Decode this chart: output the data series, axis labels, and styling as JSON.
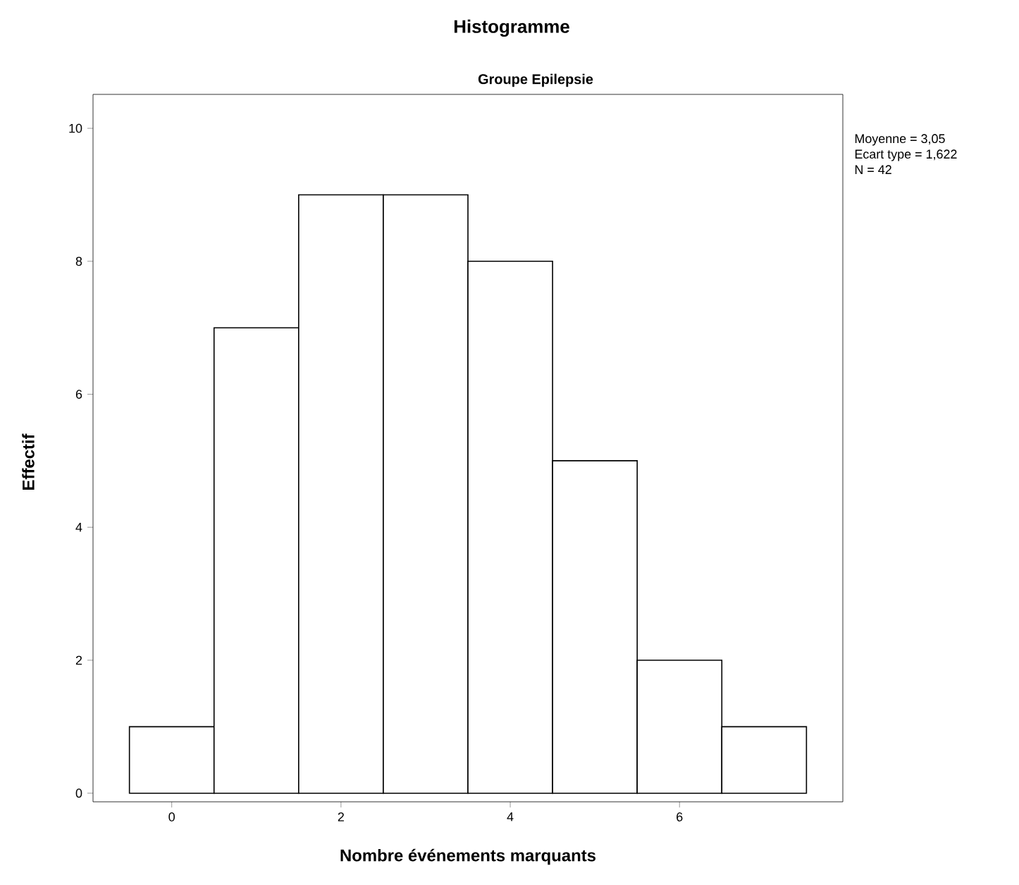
{
  "chart_data": {
    "type": "histogram",
    "title": "Histogramme",
    "subtitle": "Groupe Epilepsie",
    "xlabel": "Nombre événements marquants",
    "ylabel": "Effectif",
    "bins": [
      -0.5,
      0.5,
      1.5,
      2.5,
      3.5,
      4.5,
      5.5,
      6.5,
      7.5
    ],
    "values": [
      1,
      7,
      9,
      9,
      8,
      5,
      2,
      1
    ],
    "color": "#ffffff",
    "xlim": [
      -0.93,
      7.93
    ],
    "ylim": [
      -0.13,
      10.51
    ],
    "xticks": [
      0,
      2,
      4,
      6
    ],
    "yticks": [
      0,
      2,
      4,
      6,
      8,
      10
    ],
    "annotations": [
      "Moyenne = 3,05",
      "Ecart type = 1,622",
      "N = 42"
    ],
    "grid": false
  }
}
